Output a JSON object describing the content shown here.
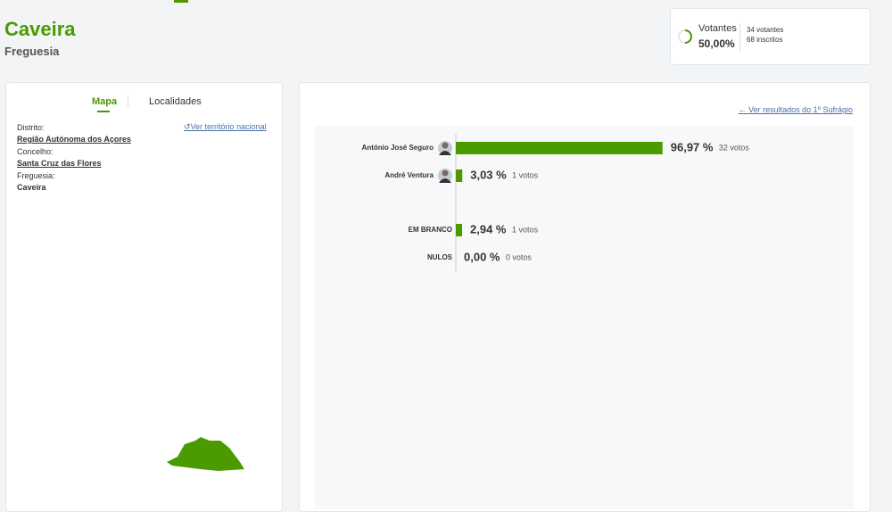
{
  "header": {
    "title": "Caveira",
    "subtitle": "Freguesia"
  },
  "turnout": {
    "label": "Votantes",
    "value": 50,
    "value_label": "50,00%",
    "voters": "34 votantes",
    "registered": "68 inscritos"
  },
  "sidebar": {
    "tabs": [
      "Mapa",
      "Localidades"
    ],
    "reset_link": "Ver território nacional",
    "fields": [
      {
        "label": "Distrito:",
        "value": "Região Autónoma dos Açores"
      },
      {
        "label": "Concelho:",
        "value": "Santa Cruz das Flores"
      },
      {
        "label": "Freguesia:",
        "value": "Caveira"
      }
    ]
  },
  "results_link": "Ver resultados do 1º Sufrágio",
  "chart_data": {
    "type": "bar",
    "categories": [
      "António José Seguro",
      "André Ventura",
      "EM BRANCO",
      "NULOS"
    ],
    "values": [
      96.97,
      3.03,
      2.94,
      0
    ],
    "value_labels": [
      "96,97 %",
      "3,03 %",
      "2,94 %",
      "0,00 %"
    ],
    "vote_labels": [
      "32 votos",
      "1 votos",
      "1 votos",
      "0 votos"
    ],
    "xlim": [
      0,
      100
    ],
    "color": "#4a9a00"
  }
}
